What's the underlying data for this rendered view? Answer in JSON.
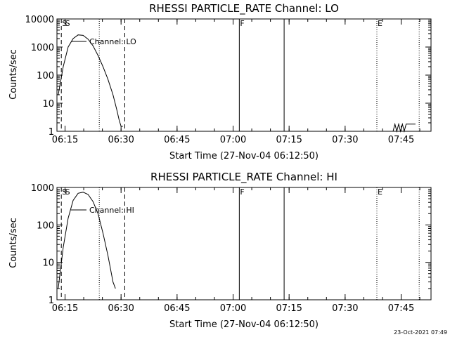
{
  "chart_data": [
    {
      "type": "line",
      "title": "RHESSI PARTICLE_RATE Channel: LO",
      "ylabel": "Counts/sec",
      "xlabel": "Start Time (27-Nov-04 06:12:50)",
      "yscale": "log",
      "ylim": [
        1,
        10000
      ],
      "xlim_minutes_from_start": [
        0,
        100.17
      ],
      "y_ticks": [
        "1",
        "10",
        "100",
        "1000",
        "10000"
      ],
      "x_ticks": [
        "06:15",
        "06:30",
        "06:45",
        "07:00",
        "07:15",
        "07:30",
        "07:45"
      ],
      "legend": "Channel: LO",
      "event_labels": [
        "S",
        "S",
        "F",
        "E"
      ],
      "series": [
        {
          "name": "Channel: LO",
          "time": [
            "06:13:10",
            "06:14:30",
            "06:15:50",
            "06:17:10",
            "06:18:30",
            "06:19:50",
            "06:21:10",
            "06:22:30",
            "06:23:50",
            "06:25:10",
            "06:26:30",
            "06:27:50",
            "06:28:50",
            "06:29:30",
            "06:30:00",
            "06:30:30"
          ],
          "values": [
            20,
            200,
            1000,
            2000,
            2700,
            2600,
            1900,
            1100,
            500,
            200,
            70,
            20,
            6,
            2.5,
            1.5,
            1.5
          ]
        },
        {
          "name": "Channel: LO",
          "time": [
            "07:42:50",
            "07:43:20",
            "07:43:50",
            "07:44:20",
            "07:44:50",
            "07:45:20",
            "07:45:50",
            "07:46:20",
            "07:46:50",
            "07:48:50"
          ],
          "values": [
            1,
            1.8,
            1,
            1.8,
            1,
            1.8,
            1,
            1.8,
            1.8,
            1.8
          ]
        }
      ]
    },
    {
      "type": "line",
      "title": "RHESSI PARTICLE_RATE Channel: HI",
      "ylabel": "Counts/sec",
      "xlabel": "Start Time (27-Nov-04 06:12:50)",
      "yscale": "log",
      "ylim": [
        1,
        1000
      ],
      "xlim_minutes_from_start": [
        0,
        100.17
      ],
      "y_ticks": [
        "1",
        "10",
        "100",
        "1000"
      ],
      "x_ticks": [
        "06:15",
        "06:30",
        "06:45",
        "07:00",
        "07:15",
        "07:30",
        "07:45"
      ],
      "legend": "Channel: HI",
      "event_labels": [
        "S",
        "S",
        "F",
        "E"
      ],
      "series": [
        {
          "name": "Channel: HI",
          "time": [
            "06:13:10",
            "06:14:30",
            "06:15:50",
            "06:17:10",
            "06:18:30",
            "06:19:50",
            "06:21:10",
            "06:22:30",
            "06:23:50",
            "06:25:10",
            "06:26:30",
            "06:27:50",
            "06:28:30"
          ],
          "values": [
            2,
            25,
            150,
            450,
            700,
            750,
            650,
            420,
            200,
            60,
            15,
            3,
            2
          ]
        }
      ]
    }
  ],
  "footer": {
    "timestamp": "23-Oct-2021 07:49"
  }
}
